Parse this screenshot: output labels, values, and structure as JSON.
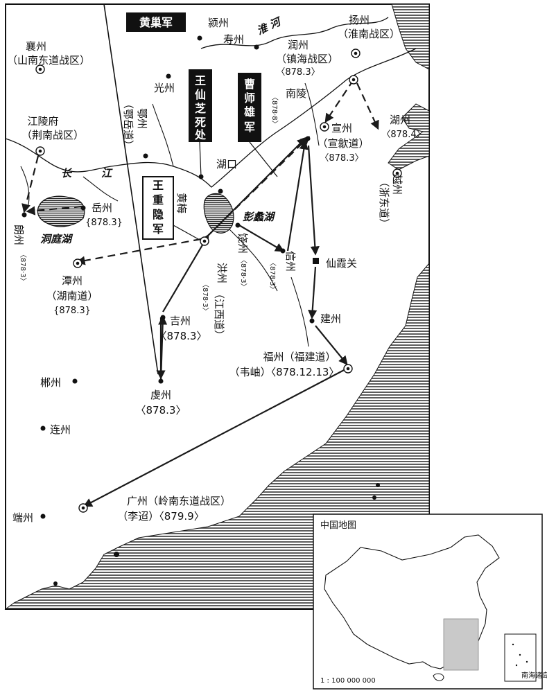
{
  "map": {
    "labels": {
      "huangchao": "黄巢军",
      "wangxianzhi": "王仙芝死处",
      "caoshixiong": "曹师雄军",
      "wangzhongyin": "王重隐军",
      "xiangzhou": "襄州",
      "xiangzhou_sub": "（山南东道战区）",
      "yingzhou": "颍州",
      "shouzhou": "寿州",
      "huaihe": "淮 河",
      "yangzhou": "扬州",
      "yangzhou_sub": "（淮南战区）",
      "runzhou": "润州",
      "runzhou_sub": "（镇海战区）",
      "runzhou_date": "〈878.3〉",
      "nanling": "南陵",
      "nanling_date": "〈878·8〉",
      "guangzhou_n": "光州",
      "eyuedao": "（鄂岳道）",
      "ezhou": "鄂州",
      "xuanzhou": "宣州",
      "xuanzhou_sub": "（宣歙道）",
      "xuanzhou_date": "〈878.3〉",
      "huzhou": "湖州",
      "huzhou_date": "〈878.4〉",
      "jianglingfu": "江陵府",
      "jianglingfu_sub": "（荆南战区）",
      "chang": "长",
      "jiang": "江",
      "hukou": "湖口",
      "huangmei": "黄梅",
      "yuezhou": "岳州",
      "yuezhou_date": "{878.3}",
      "pengli": "彭蠡湖",
      "dongting": "洞庭湖",
      "langzhou": "朗州",
      "langzhou_date": "〈878·3〉",
      "raozhou": "饶州",
      "raozhou_date": "〈878·3〉",
      "xinzhou": "信州",
      "xinzhou_date": "〈878·3〉",
      "xianxiaguan": "仙霞关",
      "hongzhou": "洪州",
      "hongzhou_date": "〈878·3〉",
      "jiangxidao": "（江西道）",
      "yuezhou2": "越州",
      "yidongdao": "（浙东道）",
      "tanzhou": "潭州",
      "tanzhou_sub": "（湖南道）",
      "tanzhou_date": "{878.3}",
      "jizhou": "吉州",
      "jizhou_date": "〈878.3〉",
      "jianzhou": "建州",
      "fuzhou": "福州（福建道）",
      "fuzhou_sub": "（韦岫）〈878.12.13〉",
      "chenzhou": "郴州",
      "qianzhou": "虔州",
      "qianzhou_date": "〈878.3〉",
      "lianzhou": "连州",
      "guangzhou": "广州（岭南东道战区）",
      "guangzhou_sub": "（李迢）〈879.9〉",
      "duanzhou": "端州"
    },
    "inset": {
      "title": "中国地图",
      "scale": "1 : 100 000 000",
      "nanhai": "南海诸岛"
    }
  }
}
